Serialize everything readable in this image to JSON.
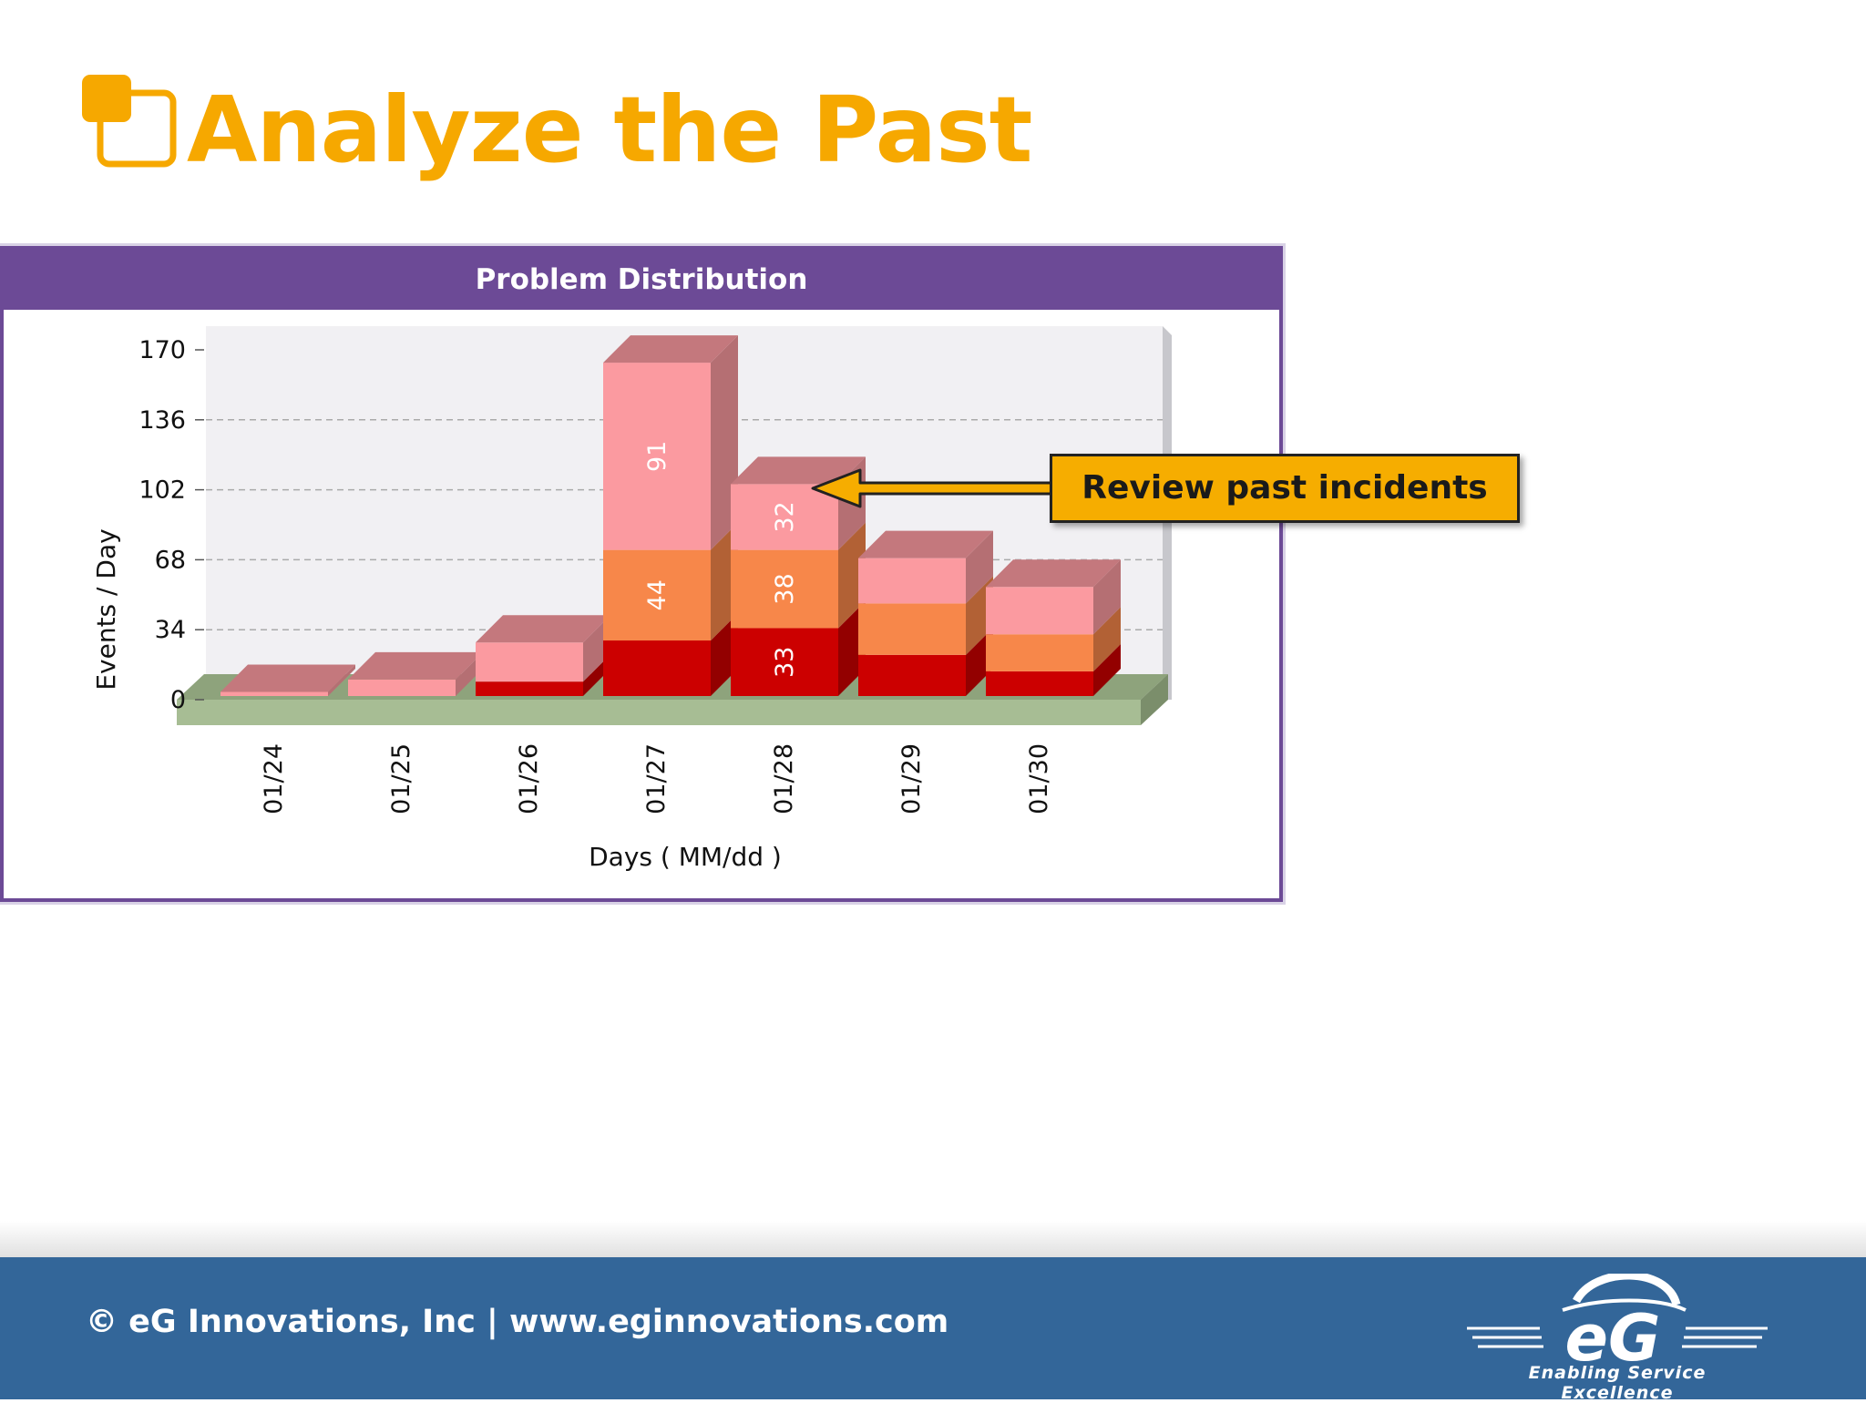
{
  "slide": {
    "title": "Analyze the Past"
  },
  "chart_data": {
    "type": "bar",
    "stacked": true,
    "three_d": true,
    "title": "Problem Distribution",
    "xlabel": "Days ( MM/dd )",
    "ylabel": "Events / Day",
    "ylim": [
      0,
      170
    ],
    "yticks": [
      "170",
      "136",
      "102",
      "68",
      "34",
      "0"
    ],
    "categories": [
      "01/24",
      "01/25",
      "01/26",
      "01/27",
      "01/28",
      "01/29",
      "01/30"
    ],
    "series": [
      {
        "color": "#cc0000",
        "values": [
          0,
          0,
          7,
          27,
          33,
          20,
          12
        ]
      },
      {
        "color": "#f7874a",
        "values": [
          0,
          0,
          0,
          44,
          38,
          25,
          18
        ]
      },
      {
        "color": "#fb9aa0",
        "values": [
          2,
          8,
          19,
          91,
          32,
          22,
          23
        ]
      }
    ],
    "data_labels": [
      {
        "category": "01/27",
        "series": 1,
        "text": "44"
      },
      {
        "category": "01/27",
        "series": 2,
        "text": "91"
      },
      {
        "category": "01/28",
        "series": 0,
        "text": "33"
      },
      {
        "category": "01/28",
        "series": 1,
        "text": "38"
      },
      {
        "category": "01/28",
        "series": 2,
        "text": "32"
      }
    ],
    "grid": true,
    "legend": "none"
  },
  "callout": {
    "text": "Review past incidents",
    "color": "#f6ad00"
  },
  "footer": {
    "copyright": "© eG Innovations, Inc  |  www.eginnovations.com",
    "logo_text": "eG",
    "tagline": "Enabling Service Excellence",
    "color": "#336699"
  },
  "theme": {
    "accent": "#f6a800",
    "panel": "#6c4a96"
  }
}
